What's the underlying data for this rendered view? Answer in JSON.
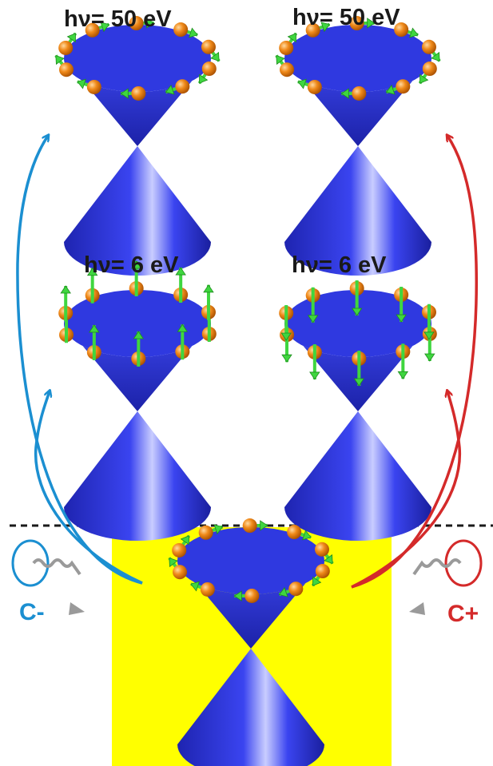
{
  "panels": [
    {
      "id": "cminus-50",
      "energy_label": "hν= 50 eV",
      "spin_texture": "in-plane"
    },
    {
      "id": "cplus-50",
      "energy_label": "hν= 50 eV",
      "spin_texture": "in-plane"
    },
    {
      "id": "cminus-6",
      "energy_label": "hν= 6 eV",
      "spin_texture": "out-of-plane-up"
    },
    {
      "id": "cplus-6",
      "energy_label": "hν= 6 eV",
      "spin_texture": "out-of-plane-down"
    }
  ],
  "ground_state": {
    "spin_texture": "in-plane",
    "background": "#ffff00"
  },
  "polarization": {
    "left": {
      "label": "C-",
      "color": "#1b8fd1"
    },
    "right": {
      "label": "C+",
      "color": "#d42a2a"
    }
  },
  "colors": {
    "cone": "#2a33d6",
    "electron": "#f08a1a",
    "spin_arrow": "#3fd63f",
    "photon_wave": "#9a9a9a",
    "divider": "#1a1a1a"
  },
  "icons": [
    "dirac-cone-icon",
    "electron-sphere-icon",
    "spin-arrow-icon",
    "circular-polarization-icon",
    "photon-wave-icon"
  ]
}
